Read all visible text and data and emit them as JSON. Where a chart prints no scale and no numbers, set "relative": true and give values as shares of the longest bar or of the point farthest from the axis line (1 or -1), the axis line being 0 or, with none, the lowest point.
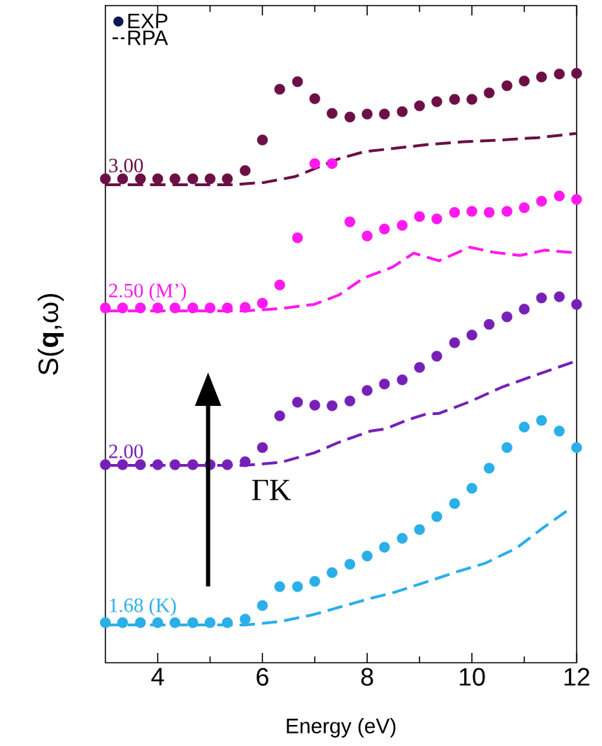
{
  "chart_data": {
    "type": "scatter",
    "relative": true,
    "xlabel": "Energy (eV)",
    "ylabel": "S(**q**,ω)",
    "xlim": [
      3,
      12
    ],
    "xticks": [
      4,
      6,
      8,
      10,
      12
    ],
    "legend": "top left",
    "series": [
      {
        "name": "EXP",
        "marker": "circle",
        "color": "#0d1552"
      },
      {
        "name": "RPA",
        "type": "line",
        "line_style": "dashed",
        "marker": "none",
        "color": "#000000"
      },
      {
        "marker": "circle",
        "color": "#6b0f45",
        "x": [
          3,
          3.33,
          3.67,
          4,
          4.33,
          4.67,
          5,
          5.33,
          5.67,
          6,
          6.33,
          6.67,
          7,
          7.33,
          7.67,
          8,
          8.33,
          8.67,
          9,
          9.33,
          9.67,
          10,
          10.33,
          10.67,
          11,
          11.33,
          11.67,
          12
        ],
        "values": [
          0.821,
          0.821,
          0.821,
          0.821,
          0.821,
          0.821,
          0.821,
          0.821,
          0.835,
          0.887,
          0.973,
          0.986,
          0.957,
          0.932,
          0.926,
          0.931,
          0.931,
          0.935,
          0.945,
          0.952,
          0.956,
          0.956,
          0.967,
          0.979,
          0.987,
          0.994,
          0.999,
          1
        ]
      },
      {
        "type": "line",
        "line_style": "dashed",
        "marker": "none",
        "color": "#6b0f45",
        "x": [
          3,
          5.4,
          6.04,
          6.63,
          7.1,
          7.46,
          7.94,
          8.54,
          9.13,
          9.85,
          10.56,
          11.27,
          11.99
        ],
        "values": [
          0.811,
          0.811,
          0.815,
          0.825,
          0.842,
          0.855,
          0.867,
          0.873,
          0.879,
          0.884,
          0.887,
          0.891,
          0.898
        ]
      },
      {
        "marker": "circle",
        "color": "#ff19f0",
        "x": [
          3,
          3.33,
          3.67,
          4,
          4.33,
          4.67,
          5,
          5.33,
          5.67,
          6,
          6.33,
          6.67,
          7,
          7.33,
          7.67,
          8,
          8.33,
          8.67,
          9,
          9.33,
          9.67,
          10,
          10.33,
          10.67,
          11,
          11.33,
          11.67,
          12
        ],
        "values": [
          0.602,
          0.602,
          0.602,
          0.602,
          0.602,
          0.602,
          0.602,
          0.602,
          0.603,
          0.61,
          0.641,
          0.721,
          0.847,
          0.847,
          0.748,
          0.724,
          0.736,
          0.742,
          0.757,
          0.753,
          0.764,
          0.766,
          0.764,
          0.766,
          0.772,
          0.783,
          0.792,
          0.786
        ]
      },
      {
        "type": "line",
        "line_style": "dashed",
        "marker": "none",
        "color": "#ff19f0",
        "x": [
          3,
          5.67,
          6.35,
          6.99,
          7.46,
          7.94,
          8.48,
          8.89,
          9.37,
          9.96,
          10.44,
          10.92,
          11.39,
          11.93
        ],
        "values": [
          0.597,
          0.597,
          0.601,
          0.608,
          0.624,
          0.653,
          0.671,
          0.695,
          0.682,
          0.705,
          0.696,
          0.691,
          0.7,
          0.696
        ]
      },
      {
        "marker": "circle",
        "color": "#7620b8",
        "x": [
          3,
          3.33,
          3.67,
          4,
          4.33,
          4.67,
          5,
          5.33,
          5.67,
          6,
          6.33,
          6.67,
          7,
          7.33,
          7.67,
          8,
          8.33,
          8.67,
          9,
          9.33,
          9.67,
          10,
          10.33,
          10.67,
          11,
          11.33,
          11.67,
          12
        ],
        "values": [
          0.336,
          0.336,
          0.336,
          0.336,
          0.336,
          0.336,
          0.336,
          0.336,
          0.341,
          0.365,
          0.419,
          0.442,
          0.437,
          0.436,
          0.444,
          0.462,
          0.473,
          0.48,
          0.501,
          0.52,
          0.543,
          0.556,
          0.574,
          0.587,
          0.6,
          0.619,
          0.621,
          0.608
        ]
      },
      {
        "type": "line",
        "line_style": "dashed",
        "marker": "none",
        "color": "#7620b8",
        "x": [
          3,
          5.67,
          6.35,
          6.99,
          7.46,
          8.06,
          8.36,
          8.77,
          9.13,
          9.37,
          9.96,
          10.56,
          11.15,
          11.99
        ],
        "values": [
          0.335,
          0.335,
          0.34,
          0.356,
          0.374,
          0.393,
          0.397,
          0.412,
          0.422,
          0.423,
          0.443,
          0.467,
          0.486,
          0.512
        ]
      },
      {
        "marker": "circle",
        "color": "#2aafe8",
        "x": [
          3,
          3.33,
          3.67,
          4,
          4.33,
          4.67,
          5,
          5.33,
          5.67,
          6,
          6.33,
          6.67,
          7,
          7.33,
          7.67,
          8,
          8.33,
          8.67,
          9,
          9.33,
          9.67,
          10,
          10.33,
          10.67,
          11,
          11.33,
          11.67,
          12
        ],
        "values": [
          0.068,
          0.068,
          0.068,
          0.068,
          0.068,
          0.068,
          0.068,
          0.068,
          0.074,
          0.097,
          0.129,
          0.129,
          0.138,
          0.153,
          0.167,
          0.181,
          0.196,
          0.211,
          0.226,
          0.248,
          0.27,
          0.296,
          0.33,
          0.365,
          0.4,
          0.411,
          0.393,
          0.365
        ]
      },
      {
        "type": "line",
        "line_style": "dashed",
        "marker": "none",
        "color": "#2aafe8",
        "x": [
          3,
          5.67,
          6.35,
          6.99,
          7.58,
          8.06,
          8.54,
          9.13,
          9.67,
          10.26,
          10.86,
          11.33,
          11.87
        ],
        "values": [
          0.064,
          0.064,
          0.07,
          0.082,
          0.097,
          0.109,
          0.12,
          0.137,
          0.153,
          0.169,
          0.195,
          0.227,
          0.261
        ]
      }
    ],
    "annotations": [
      {
        "text": "3.00",
        "y": 0.821
      },
      {
        "text": "2.50 (M’)",
        "y": 0.602
      },
      {
        "text": "2.00",
        "y": 0.336
      },
      {
        "text": "1.68 (K)",
        "y": 0.068
      },
      "ΓK"
    ]
  }
}
